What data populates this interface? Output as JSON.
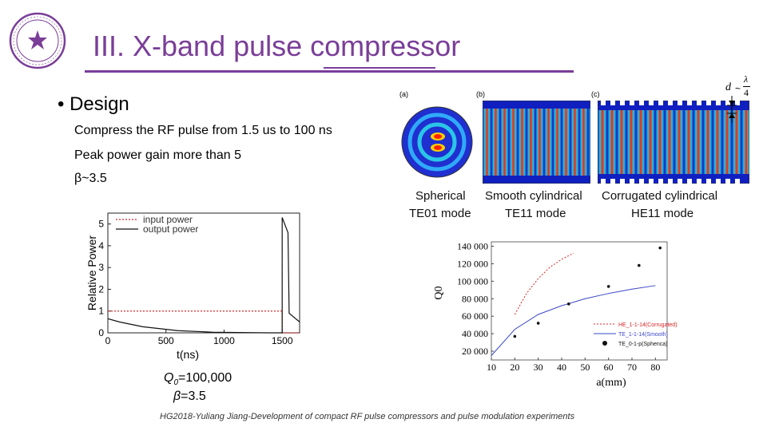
{
  "slide": {
    "title": "III. X-band pulse compressor",
    "bullet": "• Design",
    "lines": [
      "Compress the RF pulse from 1.5 us to 100 ns",
      "Peak power gain more than 5",
      "β~3.5"
    ],
    "q0_value": "=100,000",
    "q0_label_q": "Q",
    "q0_label_sub": "0",
    "beta_label": "β",
    "beta_value": "=3.5",
    "footer": "HG2018-Yuliang Jiang-Development of compact RF pulse compressors and pulse modulation experiments"
  },
  "mode_figure": {
    "panel_labels": [
      "(a)",
      "(b)",
      "(c)"
    ],
    "dim_d": "d",
    "dim_lambda": "λ",
    "dim_four": "4",
    "captions": [
      {
        "line1": "Spherical",
        "line2": "TE01 mode"
      },
      {
        "line1": "Smooth cylindrical",
        "line2": "TE11 mode"
      },
      {
        "line1": "Corrugated cylindrical",
        "line2": "HE11 mode"
      }
    ]
  },
  "chart_data": [
    {
      "type": "line",
      "xlabel": "t(ns)",
      "ylabel": "Relative Power",
      "xlim": [
        0,
        1650
      ],
      "ylim": [
        0,
        5.5
      ],
      "xticks": [
        0,
        500,
        1000,
        1500
      ],
      "yticks": [
        0,
        1,
        2,
        3,
        4,
        5
      ],
      "legend": "top-left",
      "series": [
        {
          "name": "input power",
          "style": "dotted",
          "color": "#d62728",
          "x": [
            0,
            1500,
            1500,
            1650
          ],
          "y": [
            1,
            1,
            0,
            0
          ]
        },
        {
          "name": "output power",
          "style": "solid",
          "color": "#111111",
          "x": [
            0,
            100,
            300,
            600,
            900,
            1200,
            1400,
            1500,
            1500,
            1550,
            1560,
            1650
          ],
          "y": [
            0.65,
            0.5,
            0.28,
            0.1,
            0.03,
            0.01,
            0.0,
            0.0,
            5.3,
            4.6,
            0.9,
            0.5
          ]
        }
      ]
    },
    {
      "type": "scatter",
      "xlabel": "a(mm)",
      "ylabel": "Q0",
      "xlim": [
        10,
        85
      ],
      "ylim": [
        10000,
        145000
      ],
      "xticks": [
        10,
        20,
        30,
        40,
        50,
        60,
        70,
        80
      ],
      "yticks": [
        20000,
        40000,
        60000,
        80000,
        100000,
        120000,
        140000
      ],
      "ytick_labels": [
        "20 000",
        "40 000",
        "60 000",
        "80 000",
        "100 000",
        "120 000",
        "140 000"
      ],
      "legend": "bottom-right",
      "series": [
        {
          "name": "HE_1-1-14(Corrugated)",
          "style": "dotted",
          "color": "#d62728",
          "x": [
            20,
            25,
            30,
            35,
            40,
            45
          ],
          "y": [
            62000,
            86000,
            103000,
            116000,
            125000,
            132000
          ]
        },
        {
          "name": "TE_1-1-14(Smooth)",
          "style": "solid",
          "color": "#3a47c8",
          "x": [
            10,
            20,
            30,
            40,
            50,
            60,
            70,
            80
          ],
          "y": [
            15000,
            45000,
            62000,
            72000,
            80000,
            86000,
            91000,
            95000
          ]
        },
        {
          "name": "TE_0-1-p(Sphenca)",
          "style": "points",
          "color": "#111111",
          "x": [
            20,
            30,
            43,
            60,
            73,
            82
          ],
          "y": [
            37000,
            52000,
            74000,
            94000,
            118000,
            138000
          ]
        }
      ]
    }
  ]
}
